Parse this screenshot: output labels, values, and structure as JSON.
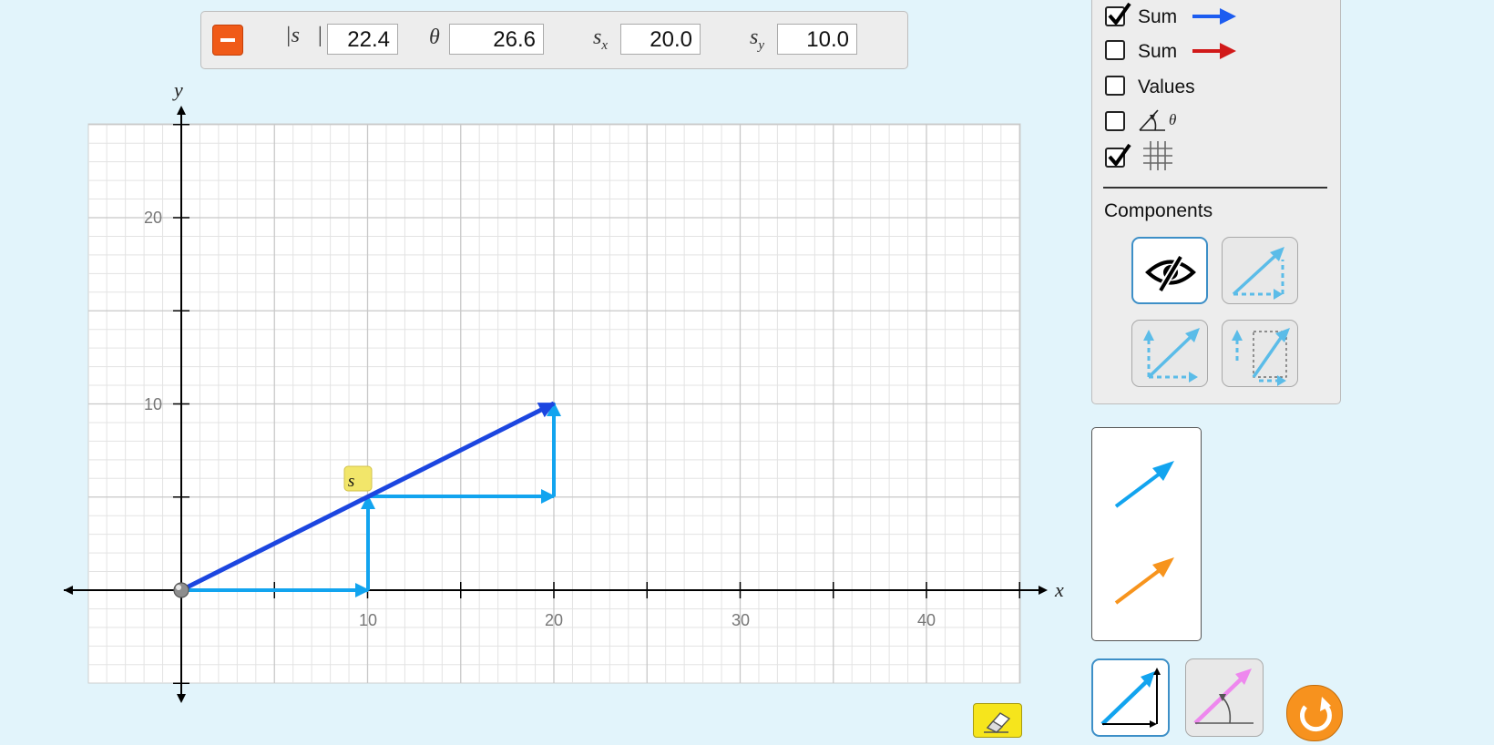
{
  "readout": {
    "magnitude_label": "|s⃗|",
    "magnitude": "22.4",
    "theta_label": "θ",
    "theta": "26.6",
    "sx_label": "s",
    "sx_sub": "x",
    "sx": "20.0",
    "sy_label": "s",
    "sy_sub": "y",
    "sy": "10.0"
  },
  "graph": {
    "x_axis_label": "x",
    "y_axis_label": "y",
    "x_ticks": [
      "10",
      "20",
      "30",
      "40"
    ],
    "y_ticks": [
      "10",
      "20"
    ],
    "vector_label": "s⃗",
    "sum_color": "#1c46e0",
    "component_color": "#12a4ef"
  },
  "checkboxes": [
    {
      "label": "Sum",
      "checked": true,
      "arrow_color": "#1c5cf0"
    },
    {
      "label": "Sum",
      "checked": false,
      "arrow_color": "#d11a1a"
    },
    {
      "label": "Values",
      "checked": false
    },
    {
      "label": "θ",
      "checked": false,
      "icon": "angle-icon"
    },
    {
      "label": "",
      "checked": true,
      "icon": "grid-icon"
    }
  ],
  "components": {
    "heading": "Components",
    "options": [
      "hidden",
      "triangle",
      "parallelogram",
      "projection"
    ],
    "selected": "hidden"
  },
  "toolbox": {
    "colors": [
      "#12a4ef",
      "#f7941d"
    ]
  },
  "modes": {
    "options": [
      "cartesian",
      "polar"
    ],
    "selected": "cartesian"
  }
}
